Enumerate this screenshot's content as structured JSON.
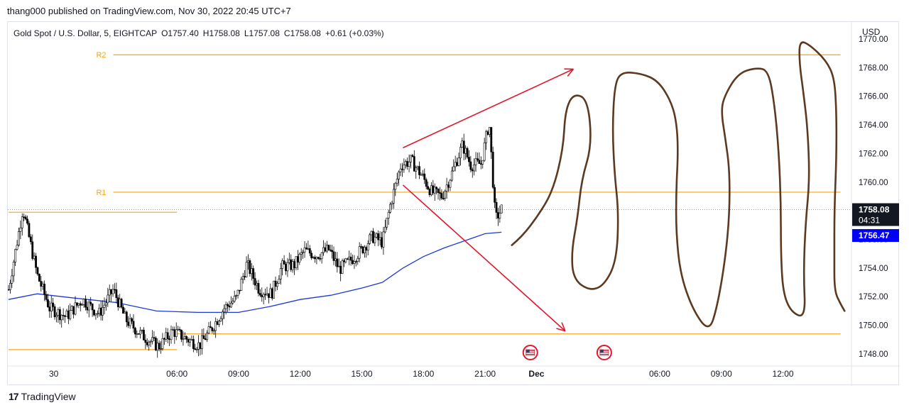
{
  "header": {
    "publish_line": "thang000 published on TradingView.com, Nov 30, 2022 20:45 UTC+7"
  },
  "footer": {
    "logo_glyph": "17",
    "brand": "TradingView"
  },
  "chart_data": {
    "type": "candlestick",
    "symbol_line": "Gold Spot / U.S. Dollar, 5, EIGHTCAP",
    "ohlc": {
      "O": "O1757.40",
      "H": "H1758.08",
      "L": "L1757.08",
      "C": "C1758.08",
      "change": "+0.61 (+0.03%)"
    },
    "currency": "USD",
    "ylim": [
      1747.5,
      1770.2
    ],
    "y_ticks": [
      1770,
      1768,
      1766,
      1764,
      1762,
      1760,
      1758,
      1756,
      1754,
      1752,
      1750,
      1748
    ],
    "x_ticks": [
      {
        "label": "30",
        "t": 0.0,
        "bold": false
      },
      {
        "label": "06:00",
        "t": 6.0,
        "bold": false
      },
      {
        "label": "09:00",
        "t": 9.0,
        "bold": false
      },
      {
        "label": "12:00",
        "t": 12.0,
        "bold": false
      },
      {
        "label": "15:00",
        "t": 15.0,
        "bold": false
      },
      {
        "label": "18:00",
        "t": 18.0,
        "bold": false
      },
      {
        "label": "21:00",
        "t": 21.0,
        "bold": false
      },
      {
        "label": "Dec",
        "t": 23.5,
        "bold": true
      },
      {
        "label": "06:00",
        "t": 29.5,
        "bold": false
      },
      {
        "label": "09:00",
        "t": 32.5,
        "bold": false
      },
      {
        "label": "12:00",
        "t": 35.5,
        "bold": false
      }
    ],
    "xlim": [
      -2.2,
      38.8
    ],
    "price_label": {
      "value": "1758.08",
      "countdown": "04:31",
      "color": "#131722"
    },
    "ma_label": {
      "value": "1756.47",
      "color": "#0000ff"
    },
    "levels": [
      {
        "name": "R2",
        "price": 1768.9,
        "t0": 2.9,
        "t1": 38.3
      },
      {
        "name": "R1",
        "price": 1759.3,
        "t0": 2.9,
        "t1": 38.3
      },
      {
        "name": "",
        "price": 1757.9,
        "t0": -2.2,
        "t1": 6.0
      },
      {
        "name": "",
        "price": 1749.4,
        "t0": 5.9,
        "t1": 38.3
      },
      {
        "name": "",
        "price": 1748.3,
        "t0": -2.2,
        "t1": 6.0
      }
    ],
    "level_color": "#f7a21b",
    "candles_keypoints": [
      [
        -2.2,
        1752.5
      ],
      [
        -1.7,
        1756.5
      ],
      [
        -1.5,
        1758.2
      ],
      [
        -1.3,
        1756.8
      ],
      [
        -0.8,
        1753.5
      ],
      [
        -0.2,
        1751.2
      ],
      [
        0.6,
        1750.6
      ],
      [
        1.4,
        1751.8
      ],
      [
        2.2,
        1750.8
      ],
      [
        2.9,
        1752.5
      ],
      [
        3.5,
        1750.4
      ],
      [
        4.3,
        1749.3
      ],
      [
        5.1,
        1748.5
      ],
      [
        5.8,
        1749.6
      ],
      [
        6.4,
        1749.1
      ],
      [
        7.1,
        1748.6
      ],
      [
        7.7,
        1749.8
      ],
      [
        8.3,
        1751.2
      ],
      [
        8.9,
        1751.9
      ],
      [
        9.4,
        1754.3
      ],
      [
        10.0,
        1752.5
      ],
      [
        10.6,
        1752.2
      ],
      [
        11.1,
        1754.1
      ],
      [
        11.7,
        1754.2
      ],
      [
        12.2,
        1755.2
      ],
      [
        12.8,
        1754.9
      ],
      [
        13.4,
        1755.3
      ],
      [
        13.9,
        1753.9
      ],
      [
        14.5,
        1754.6
      ],
      [
        15.0,
        1755.3
      ],
      [
        15.5,
        1756.2
      ],
      [
        16.0,
        1755.8
      ],
      [
        16.4,
        1758.5
      ],
      [
        16.9,
        1761.2
      ],
      [
        17.4,
        1761.5
      ],
      [
        17.9,
        1760.5
      ],
      [
        18.4,
        1759.3
      ],
      [
        18.9,
        1759.0
      ],
      [
        19.4,
        1760.7
      ],
      [
        19.9,
        1762.6
      ],
      [
        20.3,
        1761.2
      ],
      [
        20.8,
        1761.3
      ],
      [
        21.2,
        1764.2
      ],
      [
        21.5,
        1757.4
      ],
      [
        21.8,
        1758.1
      ]
    ],
    "ma_points": [
      [
        -2.2,
        1751.8
      ],
      [
        -0.8,
        1752.2
      ],
      [
        1.0,
        1751.9
      ],
      [
        3.0,
        1751.6
      ],
      [
        5.0,
        1751.0
      ],
      [
        7.0,
        1750.9
      ],
      [
        9.0,
        1750.9
      ],
      [
        10.5,
        1751.3
      ],
      [
        12.0,
        1751.8
      ],
      [
        13.5,
        1752.1
      ],
      [
        15.0,
        1752.6
      ],
      [
        16.0,
        1753.0
      ],
      [
        17.0,
        1754.0
      ],
      [
        18.0,
        1754.8
      ],
      [
        19.0,
        1755.4
      ],
      [
        20.0,
        1755.9
      ],
      [
        21.0,
        1756.4
      ],
      [
        21.8,
        1756.5
      ]
    ],
    "ma_color": "#1e3ad6",
    "trend_lines": [
      {
        "from": [
          17.0,
          1762.4
        ],
        "to": [
          25.3,
          1767.9
        ],
        "arrow": true
      },
      {
        "from": [
          17.0,
          1759.8
        ],
        "to": [
          24.9,
          1749.6
        ],
        "arrow": true
      }
    ],
    "trend_color": "#e0182d",
    "drawing_path": [
      [
        22.3,
        1755.6
      ],
      [
        22.8,
        1756.2
      ],
      [
        23.6,
        1757.7
      ],
      [
        24.3,
        1759.4
      ],
      [
        24.8,
        1762.3
      ],
      [
        24.9,
        1765.0
      ],
      [
        25.3,
        1766.2
      ],
      [
        26.0,
        1765.8
      ],
      [
        26.2,
        1762.6
      ],
      [
        25.7,
        1760.2
      ],
      [
        25.5,
        1757.5
      ],
      [
        25.2,
        1755.1
      ],
      [
        25.3,
        1753.2
      ],
      [
        26.1,
        1752.4
      ],
      [
        26.8,
        1752.8
      ],
      [
        27.4,
        1754.5
      ],
      [
        27.5,
        1757.9
      ],
      [
        27.3,
        1760.6
      ],
      [
        27.2,
        1763.7
      ],
      [
        27.3,
        1766.7
      ],
      [
        27.6,
        1767.7
      ],
      [
        28.6,
        1767.6
      ],
      [
        29.4,
        1767.1
      ],
      [
        30.0,
        1765.8
      ],
      [
        30.3,
        1764.4
      ],
      [
        30.4,
        1762.3
      ],
      [
        30.3,
        1759.4
      ],
      [
        30.3,
        1756.5
      ],
      [
        30.5,
        1753.6
      ],
      [
        31.1,
        1751.1
      ],
      [
        31.9,
        1749.5
      ],
      [
        32.3,
        1751.3
      ],
      [
        32.7,
        1754.7
      ],
      [
        32.9,
        1757.8
      ],
      [
        32.9,
        1760.9
      ],
      [
        32.7,
        1763.0
      ],
      [
        32.5,
        1764.8
      ],
      [
        32.6,
        1765.9
      ],
      [
        33.3,
        1767.6
      ],
      [
        34.2,
        1768.0
      ],
      [
        34.8,
        1767.8
      ],
      [
        35.1,
        1765.3
      ],
      [
        35.3,
        1762.0
      ],
      [
        35.4,
        1758.5
      ],
      [
        35.4,
        1755.0
      ],
      [
        35.5,
        1752.3
      ],
      [
        35.9,
        1750.9
      ],
      [
        36.6,
        1750.5
      ],
      [
        36.5,
        1753.6
      ],
      [
        36.6,
        1757.2
      ],
      [
        36.8,
        1760.2
      ],
      [
        36.7,
        1763.7
      ],
      [
        36.5,
        1766.2
      ],
      [
        36.3,
        1768.3
      ],
      [
        36.3,
        1769.9
      ],
      [
        36.8,
        1769.6
      ],
      [
        37.6,
        1768.5
      ],
      [
        38.0,
        1767.3
      ],
      [
        38.1,
        1765.0
      ],
      [
        38.1,
        1761.6
      ],
      [
        38.0,
        1758.0
      ],
      [
        38.0,
        1754.8
      ],
      [
        38.0,
        1752.4
      ],
      [
        38.3,
        1751.5
      ],
      [
        38.5,
        1751.0
      ]
    ],
    "drawing_color": "#5c3a21",
    "event_flags": [
      {
        "t": 23.2
      },
      {
        "t": 26.8
      }
    ]
  }
}
